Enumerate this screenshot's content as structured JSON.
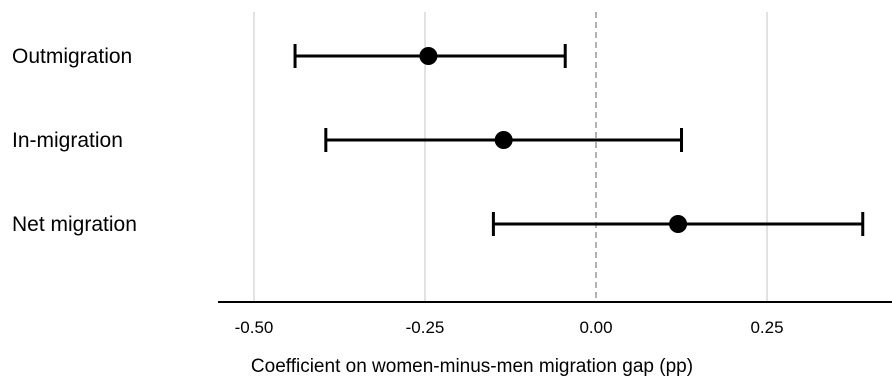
{
  "chart_data": {
    "type": "scatter",
    "subtype": "coefficient-plot-with-confidence-intervals",
    "title": "",
    "xlabel": "Coefficient on women-minus-men migration gap (pp)",
    "ylabel": "",
    "xlim": [
      -0.57,
      0.43
    ],
    "x_ticks": [
      -0.5,
      -0.25,
      0.0,
      0.25
    ],
    "x_tick_labels": [
      "-0.50",
      "-0.25",
      "0.00",
      "0.25"
    ],
    "vertical_gridlines": true,
    "reference_line": {
      "x": 0.0,
      "style": "dashed"
    },
    "categories": [
      "Outmigration",
      "In-migration",
      "Net migration"
    ],
    "estimates": [
      -0.245,
      -0.135,
      0.12
    ],
    "ci_lower": [
      -0.44,
      -0.395,
      -0.15
    ],
    "ci_upper": [
      -0.045,
      0.125,
      0.39
    ],
    "colors": {
      "marker": "#000000",
      "error_bar": "#000000",
      "grid": "#d9d9d9",
      "reference_line": "#999999",
      "axis": "#000000"
    }
  }
}
